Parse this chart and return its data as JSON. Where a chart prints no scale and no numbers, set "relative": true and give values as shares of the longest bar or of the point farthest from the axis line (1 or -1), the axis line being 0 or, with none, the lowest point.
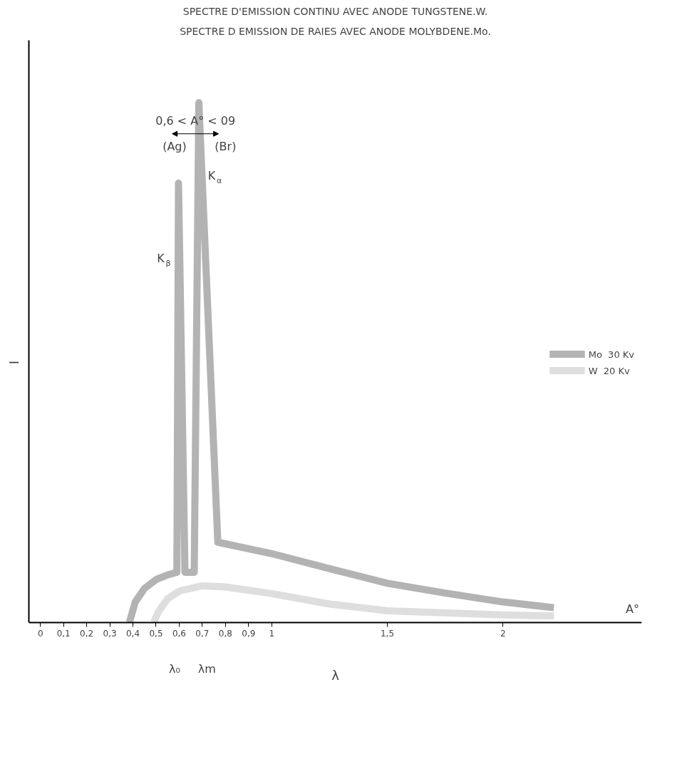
{
  "chart_data": {
    "type": "line",
    "relative": true,
    "title": "SPECTRE D'EMISSION CONTINU AVEC ANODE TUNGSTENE.W.",
    "subtitle": "SPECTRE D EMISSION DE RAIES AVEC ANODE MOLYBDENE.Mo.",
    "xlabel": "λ",
    "ylabel": "I",
    "xlim": [
      -0.05,
      2.6
    ],
    "xticks": [
      0,
      {
        "value": 0.1,
        "label": "0,1"
      },
      {
        "value": 0.2,
        "label": "0,2"
      },
      {
        "value": 0.3,
        "label": "0,3"
      },
      {
        "value": 0.4,
        "label": "0,4"
      },
      {
        "value": 0.5,
        "label": "0,5"
      },
      {
        "value": 0.6,
        "label": "0,6"
      },
      {
        "value": 0.7,
        "label": "0,7"
      },
      {
        "value": 0.8,
        "label": "0,8"
      },
      {
        "value": 0.9,
        "label": "0,9"
      },
      1,
      {
        "value": 1.5,
        "label": "1,5"
      },
      2
    ],
    "grid": false,
    "legend": "right",
    "marker": "none",
    "line_style": "solid",
    "series": [
      {
        "name": "Mo  30 Kv",
        "color": "#b3b3b3",
        "x": [
          0.385,
          0.41,
          0.45,
          0.5,
          0.55,
          0.59,
          0.597,
          0.625,
          0.665,
          0.685,
          0.767,
          1.0,
          1.25,
          1.5,
          1.75,
          2.0,
          2.22
        ],
        "values": [
          0,
          0.039,
          0.065,
          0.082,
          0.091,
          0.096,
          0.845,
          0.096,
          0.096,
          1.0,
          0.154,
          0.132,
          0.103,
          0.075,
          0.056,
          0.039,
          0.028
        ]
      },
      {
        "name": "W  20 Kv",
        "color": "#dedede",
        "x": [
          0.49,
          0.51,
          0.55,
          0.6,
          0.7,
          0.8,
          1.0,
          1.25,
          1.5,
          2.0,
          2.22
        ],
        "values": [
          0,
          0.02,
          0.045,
          0.06,
          0.07,
          0.068,
          0.055,
          0.035,
          0.022,
          0.014,
          0.012
        ]
      }
    ],
    "annotations": [
      "K$_{β}$",
      "K$_{α}$",
      "0,6 < A° < 09",
      "(Ag)",
      "(Br)",
      "A°",
      "λ₀",
      "λm"
    ]
  }
}
